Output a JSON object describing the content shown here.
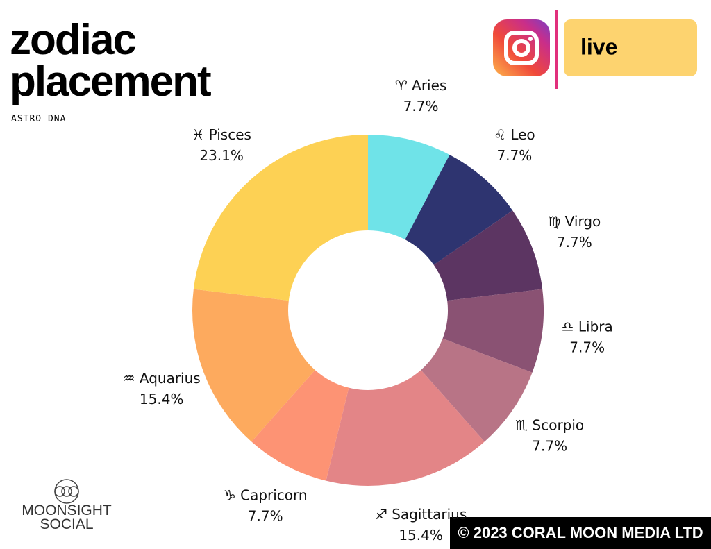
{
  "chart_data": {
    "type": "pie",
    "donut": true,
    "title": "zodiac placement",
    "subtitle": "ASTRO DNA",
    "categories": [
      "♈ Aries",
      "♌ Leo",
      "♍ Virgo",
      "♎ Libra",
      "♏ Scorpio",
      "♐ Sagittarius",
      "♑ Capricorn",
      "♒ Aquarius",
      "♓ Pisces"
    ],
    "values": [
      7.7,
      7.7,
      7.7,
      7.7,
      7.7,
      15.4,
      7.7,
      15.4,
      23.1
    ],
    "value_labels": [
      "7.7%",
      "7.7%",
      "7.7%",
      "7.7%",
      "7.7%",
      "15.4%",
      "7.7%",
      "15.4%",
      "23.1%"
    ],
    "colors": [
      "#6fe3e8",
      "#2e3470",
      "#5c3562",
      "#8a5273",
      "#b87486",
      "#e38587",
      "#fd9374",
      "#fdaa5e",
      "#fdd154"
    ]
  },
  "badge": {
    "text": "live"
  },
  "logo": {
    "line1": "MOONSIGHT",
    "line2": "SOCIAL"
  },
  "footer": {
    "text": "© 2023 CORAL MOON MEDIA LTD"
  }
}
